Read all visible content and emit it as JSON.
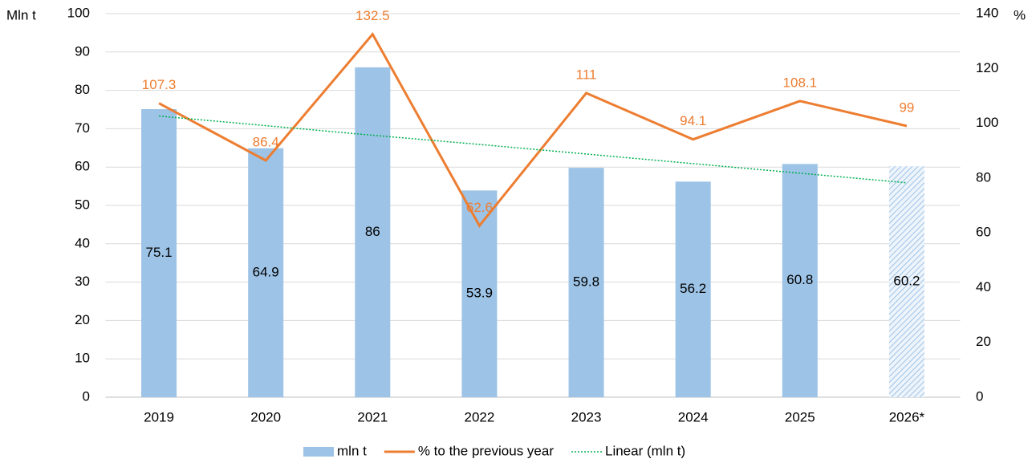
{
  "chart_data": {
    "type": "combo",
    "y_label": "Mln t",
    "y2_label": "%",
    "categories": [
      "2019",
      "2020",
      "2021",
      "2022",
      "2023",
      "2024",
      "2025",
      "2026*"
    ],
    "series": [
      {
        "name": "mln t",
        "type": "bar",
        "color": "#9dc3e6",
        "values": [
          75.1,
          64.9,
          86,
          53.9,
          59.8,
          56.2,
          60.8,
          60.2
        ],
        "hatched": [
          false,
          false,
          false,
          false,
          false,
          false,
          false,
          true
        ]
      },
      {
        "name": "% to the previous year",
        "type": "line",
        "axis": "y2",
        "color": "#ed7d31",
        "values": [
          107.3,
          86.4,
          132.5,
          62.6,
          111,
          94.1,
          108.1,
          99
        ]
      },
      {
        "name": "Linear (mln t)",
        "type": "line",
        "dotted": true,
        "color": "#00b050",
        "values": [
          73.3,
          70.8,
          68.3,
          65.9,
          63.4,
          60.9,
          58.4,
          55.9
        ]
      }
    ],
    "ylim": [
      0,
      100
    ],
    "yticks": [
      0,
      10,
      20,
      30,
      40,
      50,
      60,
      70,
      80,
      90,
      100
    ],
    "y2lim": [
      0,
      140
    ],
    "y2ticks": [
      0,
      20,
      40,
      60,
      80,
      100,
      120,
      140
    ],
    "grid": true
  }
}
